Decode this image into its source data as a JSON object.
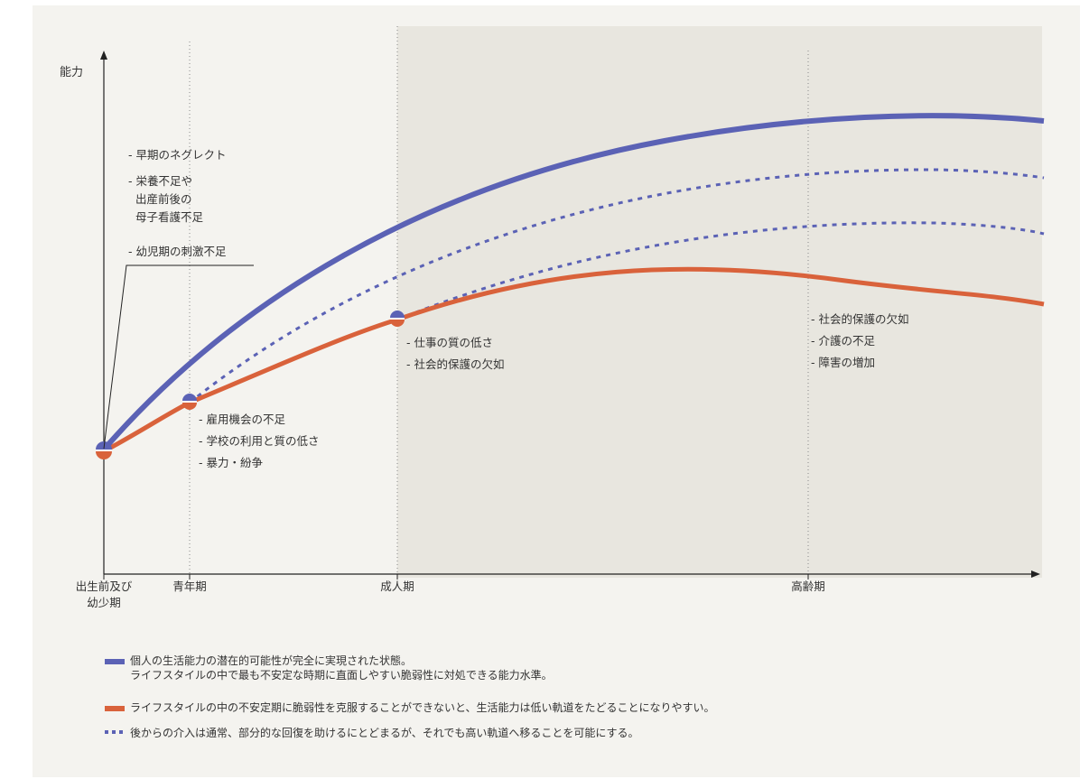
{
  "axis": {
    "y_label": "能力",
    "stages": [
      {
        "id": "prenatal",
        "line1": "出生前及び",
        "line2": "幼少期"
      },
      {
        "id": "youth",
        "line1": "青年期"
      },
      {
        "id": "adult",
        "line1": "成人期"
      },
      {
        "id": "elderly",
        "line1": "高齢期"
      }
    ]
  },
  "annotations": {
    "early": [
      "- 早期のネグレクト",
      "- 栄養不足や",
      "出産前後の",
      "母子看護不足",
      "- 幼児期の刺激不足"
    ],
    "youth": [
      "- 雇用機会の不足",
      "- 学校の利用と質の低さ",
      "- 暴力・紛争"
    ],
    "adult": [
      "- 仕事の質の低さ",
      "- 社会的保護の欠如"
    ],
    "elderly": [
      "- 社会的保護の欠如",
      "- 介護の不足",
      "- 障害の増加"
    ]
  },
  "legend": {
    "blue_line1": "個人の生活能力の潜在的可能性が完全に実現された状態。",
    "blue_line2": "ライフスタイルの中で最も不安定な時期に直面しやすい脆弱性に対処できる能力水準。",
    "orange": "ライフスタイルの中の不安定期に脆弱性を克服することができないと、生活能力は低い軌道をたどることになりやすい。",
    "dotted": "後からの介入は通常、部分的な回復を助けるにとどまるが、それでも高い軌道へ移ることを可能にする。"
  },
  "colors": {
    "blue": "#5b62b5",
    "orange": "#d9623b",
    "shade": "#e8e6df",
    "background": "#f4f3ef"
  }
}
